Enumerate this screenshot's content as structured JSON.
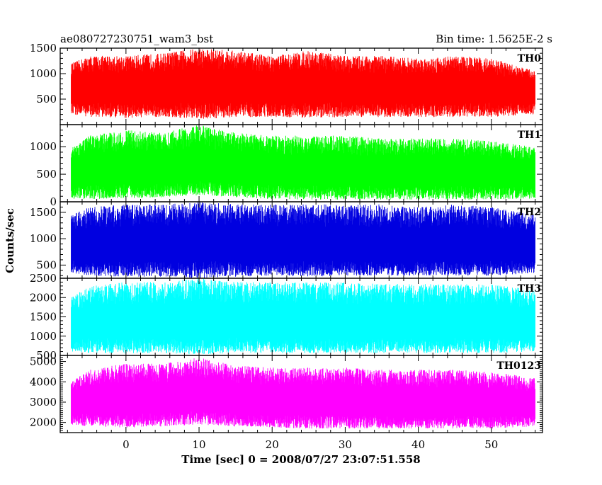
{
  "header": {
    "left": "ae080727230751_wam3_bst",
    "right": "Bin time: 1.5625E-2 s"
  },
  "chart_data": {
    "type": "line",
    "xlabel": "Time [sec] 0 = 2008/07/27 23:07:51.558",
    "ylabel": "Counts/sec",
    "xlim": [
      -9,
      57
    ],
    "xticks": [
      0,
      10,
      20,
      30,
      40,
      50
    ],
    "data_range": [
      -7.5,
      56
    ],
    "panels": [
      {
        "name": "TH0",
        "color": "#ff0000",
        "ylim": [
          0,
          1500
        ],
        "yticks": [
          500,
          1000,
          1500
        ],
        "x": [
          -7.5,
          -5,
          0,
          5,
          10,
          15,
          20,
          25,
          30,
          35,
          40,
          45,
          50,
          56
        ],
        "upper": [
          1200,
          1350,
          1350,
          1400,
          1500,
          1450,
          1350,
          1450,
          1350,
          1350,
          1300,
          1350,
          1300,
          1050
        ],
        "mean": [
          700,
          720,
          730,
          740,
          760,
          740,
          720,
          730,
          730,
          720,
          720,
          720,
          720,
          700
        ],
        "lower": [
          200,
          150,
          130,
          150,
          100,
          150,
          150,
          130,
          150,
          150,
          150,
          150,
          150,
          200
        ]
      },
      {
        "name": "TH1",
        "color": "#00ff00",
        "ylim": [
          0,
          1400
        ],
        "yticks": [
          0,
          500,
          1000
        ],
        "x": [
          -7.5,
          -5,
          0,
          5,
          10,
          15,
          20,
          25,
          30,
          35,
          40,
          45,
          50,
          56
        ],
        "upper": [
          1000,
          1200,
          1300,
          1250,
          1400,
          1250,
          1200,
          1200,
          1200,
          1150,
          1150,
          1150,
          1100,
          1000
        ],
        "mean": [
          550,
          560,
          580,
          600,
          650,
          600,
          570,
          560,
          560,
          550,
          550,
          550,
          540,
          520
        ],
        "lower": [
          50,
          50,
          60,
          80,
          120,
          80,
          50,
          40,
          40,
          40,
          40,
          40,
          40,
          50
        ]
      },
      {
        "name": "TH2",
        "color": "#0000e0",
        "ylim": [
          250,
          1700
        ],
        "yticks": [
          500,
          1000,
          1500
        ],
        "x": [
          -7.5,
          -5,
          0,
          5,
          10,
          15,
          20,
          25,
          30,
          35,
          40,
          45,
          50,
          56
        ],
        "upper": [
          1450,
          1600,
          1650,
          1650,
          1700,
          1650,
          1650,
          1650,
          1650,
          1650,
          1600,
          1650,
          1600,
          1450
        ],
        "mean": [
          850,
          860,
          870,
          880,
          900,
          880,
          870,
          870,
          870,
          860,
          860,
          860,
          860,
          850
        ],
        "lower": [
          350,
          300,
          280,
          280,
          250,
          280,
          300,
          280,
          300,
          300,
          300,
          300,
          300,
          350
        ]
      },
      {
        "name": "TH3",
        "color": "#00ffff",
        "ylim": [
          500,
          2500
        ],
        "yticks": [
          500,
          1000,
          1500,
          2000,
          2500
        ],
        "x": [
          -7.5,
          -5,
          0,
          5,
          10,
          15,
          20,
          25,
          30,
          35,
          40,
          45,
          50,
          56
        ],
        "upper": [
          2000,
          2300,
          2400,
          2400,
          2500,
          2400,
          2400,
          2400,
          2400,
          2350,
          2350,
          2350,
          2350,
          2200
        ],
        "mean": [
          1300,
          1330,
          1350,
          1360,
          1380,
          1360,
          1350,
          1350,
          1350,
          1340,
          1340,
          1340,
          1340,
          1300
        ],
        "lower": [
          600,
          560,
          550,
          560,
          520,
          560,
          560,
          560,
          560,
          560,
          560,
          560,
          560,
          600
        ]
      },
      {
        "name": "TH0123",
        "color": "#ff00ff",
        "ylim": [
          1500,
          5300
        ],
        "yticks": [
          2000,
          3000,
          4000,
          5000
        ],
        "x": [
          -7.5,
          -5,
          0,
          5,
          10,
          15,
          20,
          25,
          30,
          35,
          40,
          45,
          50,
          56
        ],
        "upper": [
          4000,
          4600,
          4900,
          4900,
          5200,
          4800,
          4700,
          4700,
          4700,
          4600,
          4600,
          4600,
          4500,
          4200
        ],
        "mean": [
          3000,
          3050,
          3100,
          3150,
          3300,
          3150,
          3050,
          3050,
          3050,
          3000,
          3000,
          3000,
          3000,
          2900
        ],
        "lower": [
          1900,
          1800,
          1750,
          1800,
          1900,
          1800,
          1750,
          1700,
          1700,
          1700,
          1700,
          1700,
          1700,
          1800
        ]
      }
    ]
  }
}
